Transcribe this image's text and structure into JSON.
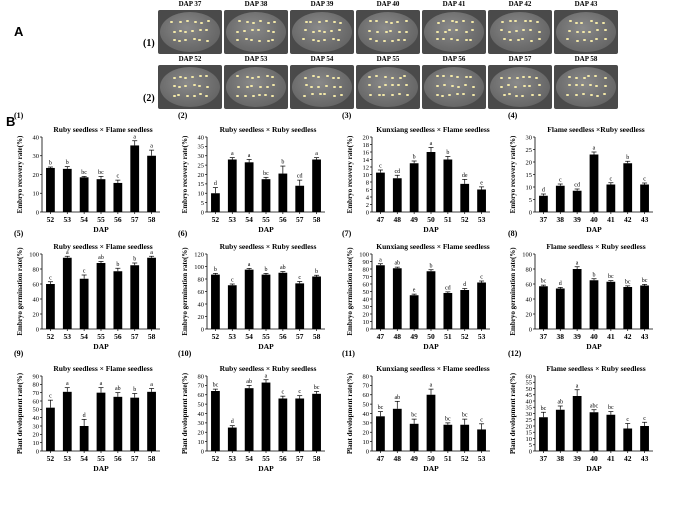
{
  "panels": {
    "a": "A",
    "b": "B"
  },
  "dish_rows": [
    {
      "row_label": "(1)",
      "labels": [
        "DAP 37",
        "DAP 38",
        "DAP 39",
        "DAP 40",
        "DAP 41",
        "DAP 42",
        "DAP 43"
      ]
    },
    {
      "row_label": "(2)",
      "labels": [
        "DAP 52",
        "DAP 53",
        "DAP 54",
        "DAP 55",
        "DAP 56",
        "DAP 57",
        "DAP 58"
      ]
    }
  ],
  "chart_data": [
    {
      "id": "1",
      "type": "bar",
      "title": "Ruby seedless × Flame seedless",
      "xlabel": "DAP",
      "ylabel": "Embryo recovery rate(%)",
      "categories": [
        "52",
        "53",
        "54",
        "55",
        "56",
        "57",
        "58"
      ],
      "values": [
        23.5,
        23,
        18.5,
        17.5,
        15.5,
        35.5,
        30
      ],
      "errors": [
        0.5,
        1.2,
        0.5,
        1.5,
        1.5,
        2.5,
        3
      ],
      "letters": [
        "b",
        "b",
        "bc",
        "bc",
        "c",
        "a",
        "a"
      ],
      "ylim": [
        0,
        40
      ],
      "yticks": [
        0,
        10,
        20,
        30,
        40
      ]
    },
    {
      "id": "2",
      "type": "bar",
      "title": "Ruby seedless × Ruby seedless",
      "xlabel": "DAP",
      "ylabel": "Embryo recovery rate(%)",
      "categories": [
        "52",
        "53",
        "54",
        "55",
        "56",
        "57",
        "58"
      ],
      "values": [
        10,
        28,
        26.5,
        17.5,
        20.5,
        14,
        28
      ],
      "errors": [
        3,
        1,
        1.5,
        1,
        4,
        3,
        1
      ],
      "letters": [
        "d",
        "a",
        "a",
        "bc",
        "b",
        "cd",
        "a"
      ],
      "ylim": [
        0,
        40
      ],
      "yticks": [
        0,
        5,
        10,
        15,
        20,
        25,
        30,
        35,
        40
      ]
    },
    {
      "id": "3",
      "type": "bar",
      "title": "Kunxiang seedless × Flame seedless",
      "xlabel": "DAP",
      "ylabel": "Embryo recovery rate(%)",
      "categories": [
        "47",
        "48",
        "49",
        "50",
        "51",
        "52",
        "53"
      ],
      "values": [
        10.5,
        9,
        13,
        16,
        14,
        7.5,
        6
      ],
      "errors": [
        0.7,
        0.8,
        0.6,
        1.2,
        0.8,
        1.2,
        0.7
      ],
      "letters": [
        "c",
        "cd",
        "b",
        "a",
        "b",
        "de",
        "e"
      ],
      "ylim": [
        0,
        20
      ],
      "yticks": [
        0,
        2,
        4,
        6,
        8,
        10,
        12,
        14,
        16,
        18,
        20
      ]
    },
    {
      "id": "4",
      "type": "bar",
      "title": "Flame seedless ×Ruby seedless",
      "xlabel": "DAP",
      "ylabel": "Embryo recovery rate(%)",
      "categories": [
        "37",
        "38",
        "39",
        "40",
        "41",
        "42",
        "43"
      ],
      "values": [
        6.5,
        10.5,
        8.5,
        23,
        11,
        19.5,
        11
      ],
      "errors": [
        0.7,
        0.7,
        0.7,
        1,
        0.7,
        0.8,
        0.6
      ],
      "letters": [
        "d",
        "c",
        "cd",
        "a",
        "c",
        "b",
        "c"
      ],
      "ylim": [
        0,
        30
      ],
      "yticks": [
        0,
        5,
        10,
        15,
        20,
        25,
        30
      ]
    },
    {
      "id": "5",
      "type": "bar",
      "title": "Ruby seedless × Flame seedless",
      "xlabel": "DAP",
      "ylabel": "Embryo germination rate(%)",
      "categories": [
        "52",
        "53",
        "54",
        "55",
        "56",
        "57",
        "58"
      ],
      "values": [
        60,
        95,
        67,
        88,
        77,
        85,
        95
      ],
      "errors": [
        3,
        2,
        5,
        2,
        4,
        3,
        2
      ],
      "letters": [
        "c",
        "a",
        "c",
        "ab",
        "b",
        "b",
        "a"
      ],
      "ylim": [
        0,
        100
      ],
      "yticks": [
        0,
        20,
        40,
        60,
        80,
        100
      ]
    },
    {
      "id": "6",
      "type": "bar",
      "title": "Ruby seedless × Ruby seedless",
      "xlabel": "DAP",
      "ylabel": "Embryo germination rate(%)",
      "categories": [
        "52",
        "53",
        "54",
        "55",
        "56",
        "57",
        "58"
      ],
      "values": [
        87,
        70,
        95,
        87,
        90,
        73,
        84
      ],
      "errors": [
        2,
        2,
        2,
        2,
        2,
        3,
        2
      ],
      "letters": [
        "b",
        "c",
        "a",
        "b",
        "ab",
        "c",
        "b"
      ],
      "ylim": [
        0,
        120
      ],
      "yticks": [
        0,
        20,
        40,
        60,
        80,
        100,
        120
      ]
    },
    {
      "id": "7",
      "type": "bar",
      "title": "Kunxiang seedless × Flame seedless",
      "xlabel": "DAP",
      "ylabel": "Embryo germination rate(%)",
      "categories": [
        "47",
        "48",
        "49",
        "50",
        "51",
        "52",
        "53"
      ],
      "values": [
        85,
        81,
        45,
        77,
        48,
        52,
        62
      ],
      "errors": [
        2,
        1.5,
        1.5,
        2,
        1.5,
        2,
        2
      ],
      "letters": [
        "a",
        "ab",
        "e",
        "b",
        "cd",
        "d",
        "c"
      ],
      "ylim": [
        0,
        100
      ],
      "yticks": [
        0,
        10,
        20,
        30,
        40,
        50,
        60,
        70,
        80,
        90,
        100
      ]
    },
    {
      "id": "8",
      "type": "bar",
      "title": "Flame seedless × Ruby seedless",
      "xlabel": "DAP",
      "ylabel": "Embryo germination rate(%)",
      "categories": [
        "37",
        "38",
        "39",
        "40",
        "41",
        "42",
        "43"
      ],
      "values": [
        57,
        54,
        80,
        65,
        63,
        56,
        58
      ],
      "errors": [
        1.5,
        1.5,
        3,
        2,
        1.5,
        1.5,
        1.5
      ],
      "letters": [
        "bc",
        "d",
        "a",
        "b",
        "bc",
        "bc",
        "bc"
      ],
      "ylim": [
        0,
        100
      ],
      "yticks": [
        0,
        20,
        40,
        60,
        80,
        100
      ]
    },
    {
      "id": "9",
      "type": "bar",
      "title": "Ruby seedless × Flame seedless",
      "xlabel": "DAP",
      "ylabel": "Plant development rate(%)",
      "categories": [
        "52",
        "53",
        "54",
        "55",
        "56",
        "57",
        "58"
      ],
      "values": [
        52,
        71,
        30,
        70,
        65,
        64,
        71
      ],
      "errors": [
        9,
        5,
        8,
        6,
        5,
        5,
        4
      ],
      "letters": [
        "c",
        "a",
        "d",
        "a",
        "ab",
        "b",
        "a"
      ],
      "ylim": [
        0,
        90
      ],
      "yticks": [
        0,
        10,
        20,
        30,
        40,
        50,
        60,
        70,
        80,
        90
      ]
    },
    {
      "id": "10",
      "type": "bar",
      "title": "Ruby seedless × Ruby seedless",
      "xlabel": "DAP",
      "ylabel": "Plant development rate(%)",
      "categories": [
        "52",
        "53",
        "54",
        "55",
        "56",
        "57",
        "58"
      ],
      "values": [
        64,
        25,
        67,
        73,
        56,
        56,
        61
      ],
      "errors": [
        2,
        2,
        3,
        3,
        2.5,
        3,
        2.5
      ],
      "letters": [
        "bc",
        "d",
        "ab",
        "a",
        "c",
        "c",
        "bc"
      ],
      "ylim": [
        0,
        80
      ],
      "yticks": [
        0,
        10,
        20,
        30,
        40,
        50,
        60,
        70,
        80
      ]
    },
    {
      "id": "11",
      "type": "bar",
      "title": "Kunxiang seedless × Flame seedless",
      "xlabel": "DAP",
      "ylabel": "Plant development rate(%)",
      "categories": [
        "47",
        "48",
        "49",
        "50",
        "51",
        "52",
        "53"
      ],
      "values": [
        37,
        45,
        29,
        60,
        28,
        28,
        23
      ],
      "errors": [
        5,
        8,
        5,
        6,
        2,
        6,
        6
      ],
      "letters": [
        "bc",
        "ab",
        "bc",
        "a",
        "bc",
        "bc",
        "c"
      ],
      "ylim": [
        0,
        80
      ],
      "yticks": [
        0,
        10,
        20,
        30,
        40,
        50,
        60,
        70,
        80
      ]
    },
    {
      "id": "12",
      "type": "bar",
      "title": "Flame seedless × Ruby seedless",
      "xlabel": "DAP",
      "ylabel": "Plant development rate(%)",
      "categories": [
        "37",
        "38",
        "39",
        "40",
        "41",
        "42",
        "43"
      ],
      "values": [
        27,
        33,
        44,
        31,
        29,
        18,
        20
      ],
      "errors": [
        4,
        3,
        5,
        2,
        2.5,
        4,
        3
      ],
      "letters": [
        "bc",
        "ab",
        "a",
        "abc",
        "bc",
        "c",
        "c"
      ],
      "ylim": [
        0,
        60
      ],
      "yticks": [
        0,
        5,
        10,
        15,
        20,
        25,
        30,
        35,
        40,
        45,
        50,
        55,
        60
      ]
    }
  ]
}
